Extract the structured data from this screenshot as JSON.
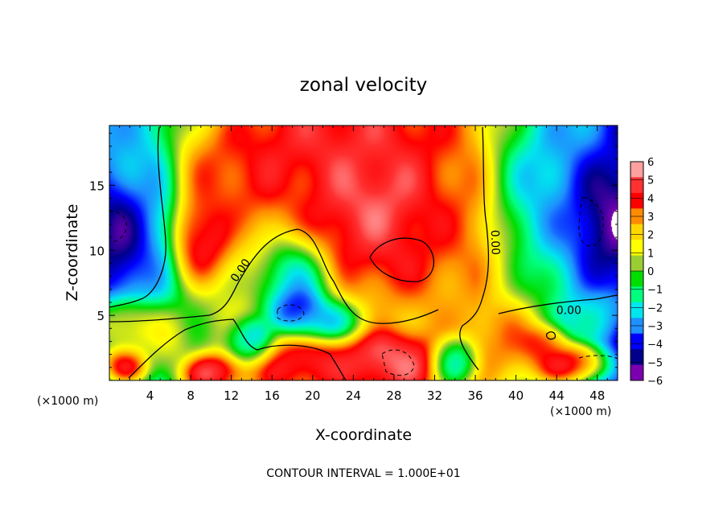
{
  "chart_data": {
    "type": "heatmap",
    "title": "zonal velocity",
    "xlabel": "X-coordinate",
    "ylabel": "Z-coordinate",
    "x_unit_label": "(×1000 m)",
    "x_unit_label_right": "(×1000 m)",
    "footer": "CONTOUR INTERVAL = 1.000E+01",
    "xlim": [
      0,
      50
    ],
    "ylim": [
      0,
      19.6
    ],
    "x_ticks": [
      4,
      8,
      12,
      16,
      20,
      24,
      28,
      32,
      36,
      40,
      44,
      48
    ],
    "x_tick_labels": [
      "4",
      "8",
      "12",
      "16",
      "20",
      "24",
      "28",
      "32",
      "36",
      "40",
      "44",
      "48"
    ],
    "y_ticks": [
      5,
      10,
      15
    ],
    "y_tick_labels": [
      "5",
      "10",
      "15"
    ],
    "colorbar": {
      "min": -6,
      "max": 6,
      "tick_values": [
        6,
        5,
        4,
        3,
        2,
        1,
        0,
        -1,
        -2,
        -3,
        -4,
        -5,
        -6
      ],
      "tick_labels": [
        "6",
        "5",
        "4",
        "3",
        "2",
        "1",
        "0",
        "−1",
        "−2",
        "−3",
        "−4",
        "−5",
        "−6"
      ],
      "colors": [
        "#ffa0a0",
        "#ff3030",
        "#ff0000",
        "#ff8c00",
        "#ffd700",
        "#ffff00",
        "#9acd32",
        "#00dd00",
        "#00ff7f",
        "#00e5ee",
        "#1e90ff",
        "#0000ff",
        "#00008b",
        "#7b00b0"
      ]
    },
    "contour_labels": [
      {
        "text": "0.00",
        "x": 13.2,
        "z": 8.3,
        "angle": -55
      },
      {
        "text": "0.00",
        "x": 37.6,
        "z": 10.6,
        "angle": 88
      },
      {
        "text": "0.00",
        "x": 45.2,
        "z": 5.1,
        "angle": 0
      }
    ],
    "blobs": [
      {
        "x": 23,
        "z": 18.5,
        "rx": 9,
        "rz": 3.5,
        "v": 5.6
      },
      {
        "x": 12,
        "z": 15.8,
        "rx": 5,
        "rz": 3.5,
        "v": 4.8
      },
      {
        "x": 27,
        "z": 13.5,
        "rx": 6,
        "rz": 3.5,
        "v": 6.5
      },
      {
        "x": 9,
        "z": 11,
        "rx": 2.5,
        "rz": 2.8,
        "v": 6.2
      },
      {
        "x": 28,
        "z": 10.5,
        "rx": 5,
        "rz": 3,
        "v": 5
      },
      {
        "x": 33,
        "z": 12,
        "rx": 4,
        "rz": 5,
        "v": 3.5
      },
      {
        "x": 4,
        "z": 13,
        "rx": 2.5,
        "rz": 6,
        "v": -3.5
      },
      {
        "x": 1.5,
        "z": 11,
        "rx": 2.5,
        "rz": 3.5,
        "v": -6.5
      },
      {
        "x": 44,
        "z": 15,
        "rx": 5,
        "rz": 5,
        "v": -3.5
      },
      {
        "x": 48.5,
        "z": 13,
        "rx": 3,
        "rz": 3.5,
        "v": -6.8
      },
      {
        "x": 18,
        "z": 7,
        "rx": 3,
        "rz": 3,
        "v": -3.8
      },
      {
        "x": 18.5,
        "z": 5.5,
        "rx": 2,
        "rz": 1.4,
        "v": -6.5
      },
      {
        "x": 21,
        "z": 4.5,
        "rx": 3,
        "rz": 1.5,
        "v": -4
      },
      {
        "x": 19.5,
        "z": 1.5,
        "rx": 5,
        "rz": 1.8,
        "v": 5.5
      },
      {
        "x": 10,
        "z": 0.6,
        "rx": 2.5,
        "rz": 1.2,
        "v": 6.5
      },
      {
        "x": 1.5,
        "z": 1.2,
        "rx": 2,
        "rz": 1.2,
        "v": 6.5
      },
      {
        "x": 2,
        "z": 4,
        "rx": 3,
        "rz": 1.8,
        "v": 3
      },
      {
        "x": 5.5,
        "z": 3,
        "rx": 2,
        "rz": 2,
        "v": 1.5
      },
      {
        "x": 28,
        "z": 1.5,
        "rx": 4,
        "rz": 1.8,
        "v": 6.5
      },
      {
        "x": 34,
        "z": 1.5,
        "rx": 2,
        "rz": 1.5,
        "v": -3.5
      },
      {
        "x": 39,
        "z": 3,
        "rx": 3,
        "rz": 2.5,
        "v": 4
      },
      {
        "x": 42.5,
        "z": 2.8,
        "rx": 2,
        "rz": 1.2,
        "v": 5.5
      },
      {
        "x": 45,
        "z": 1.3,
        "rx": 3,
        "rz": 1.3,
        "v": 6.5
      },
      {
        "x": 14,
        "z": 3,
        "rx": 2,
        "rz": 1.5,
        "v": -4
      },
      {
        "x": 48,
        "z": 5,
        "rx": 2.5,
        "rz": 1.5,
        "v": -2
      }
    ],
    "background_field": {
      "west": -3,
      "middle": 2.5,
      "mid_x": 22,
      "east": -2.5
    }
  }
}
